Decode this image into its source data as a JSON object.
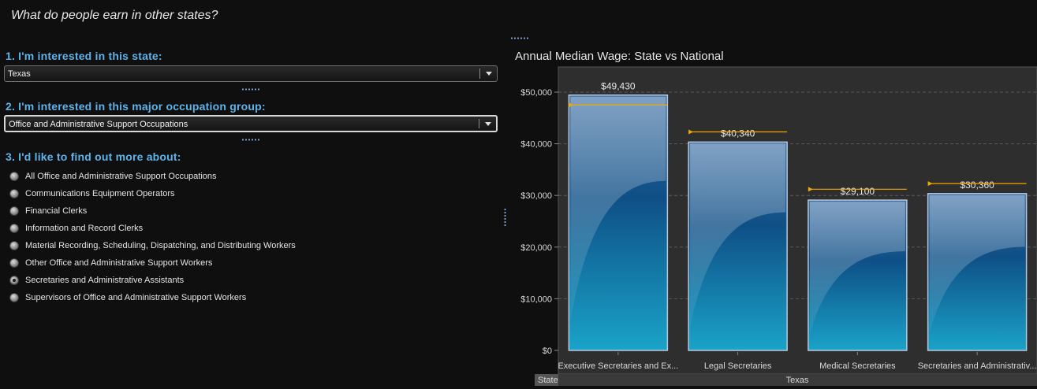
{
  "page": {
    "title": "What do people earn in other states?"
  },
  "filters": {
    "state": {
      "label": "1. I'm interested in this state:",
      "value": "Texas"
    },
    "occupation_group": {
      "label": "2. I'm interested in this major occupation group:",
      "value": "Office and Administrative Support Occupations"
    },
    "find_more": {
      "label": "3. I'd like to find out more about:",
      "options": [
        {
          "label": "All Office and Administrative Support Occupations",
          "selected": false
        },
        {
          "label": "Communications Equipment Operators",
          "selected": false
        },
        {
          "label": "Financial Clerks",
          "selected": false
        },
        {
          "label": "Information and Record Clerks",
          "selected": false
        },
        {
          "label": "Material Recording, Scheduling, Dispatching, and Distributing Workers",
          "selected": false
        },
        {
          "label": "Other Office and Administrative Support Workers",
          "selected": false
        },
        {
          "label": "Secretaries and Administrative Assistants",
          "selected": true
        },
        {
          "label": "Supervisors of Office and Administrative Support Workers",
          "selected": false
        }
      ]
    }
  },
  "chart_data": {
    "type": "bar",
    "title": "Annual Median Wage: State vs National",
    "categories": [
      "Executive Secretaries and Ex...",
      "Legal Secretaries",
      "Medical Secretaries",
      "Secretaries and Administrativ..."
    ],
    "series": [
      {
        "values": [
          49430,
          40340,
          29100,
          30360
        ],
        "labels": [
          "$49,430",
          "$40,340",
          "$29,100",
          "$30,360"
        ]
      },
      {
        "values": [
          47500,
          42300,
          31200,
          32300
        ]
      }
    ],
    "ylim": [
      0,
      50000
    ],
    "yticks": [
      0,
      10000,
      20000,
      30000,
      40000,
      50000
    ],
    "ytick_labels": [
      "$0",
      "$10,000",
      "$20,000",
      "$30,000",
      "$40,000",
      "$50,000"
    ],
    "grid": true,
    "footer": {
      "row_label": "State",
      "group_label": "Texas"
    },
    "colors": {
      "bar_top": "#3d6fa4",
      "bar_bottom": "#1aa3c8",
      "marker": "#f0a800",
      "plot_bg": "#2e2e2e"
    }
  }
}
